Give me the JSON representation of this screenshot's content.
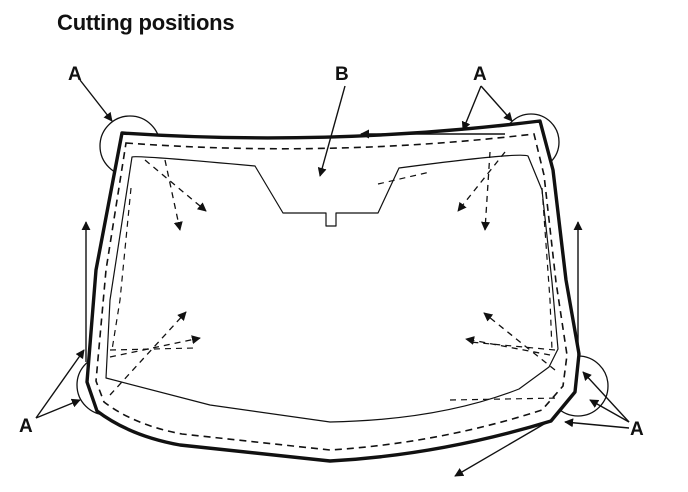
{
  "title": "Cutting positions",
  "labels": {
    "a": "A",
    "b": "B"
  },
  "colors": {
    "ink": "#111111",
    "background": "#ffffff"
  }
}
